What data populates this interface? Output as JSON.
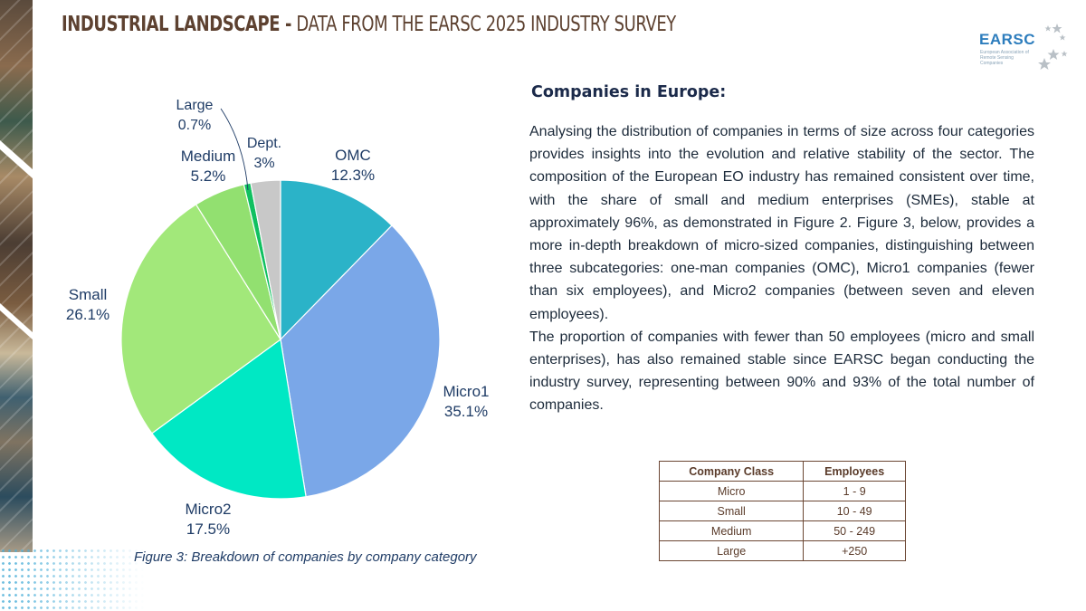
{
  "header": {
    "title_bold": "INDUSTRIAL LANDSCAPE -",
    "title_rest": " DATA FROM THE EARSC 2025 INDUSTRY SURVEY"
  },
  "logo": {
    "name": "EARSC",
    "subtitle": "European Association of Remote Sensing Companies"
  },
  "chart_data": {
    "type": "pie",
    "title": "",
    "caption": "Figure 3: Breakdown of companies by company category",
    "slices": [
      {
        "label": "OMC",
        "value": 12.3,
        "display": "12.3%",
        "color": "#2bb3c8"
      },
      {
        "label": "Micro1",
        "value": 35.1,
        "display": "35.1%",
        "color": "#7aa7e8"
      },
      {
        "label": "Micro2",
        "value": 17.5,
        "display": "17.5%",
        "color": "#00e8c4"
      },
      {
        "label": "Small",
        "value": 26.1,
        "display": "26.1%",
        "color": "#a2e87a"
      },
      {
        "label": "Medium",
        "value": 5.2,
        "display": "5.2%",
        "color": "#92e070"
      },
      {
        "label": "Large",
        "value": 0.7,
        "display": "0.7%",
        "color": "#10c060"
      },
      {
        "label": "Dept.",
        "value": 3,
        "display": "3%",
        "color": "#c8c8c8"
      }
    ]
  },
  "section": {
    "heading": "Companies in Europe:",
    "paragraph1": "Analysing the distribution of companies in terms of size across four categories provides insights into the evolution and relative stability of the sector. The composition of the European EO industry has remained consistent over time, with the share of small and medium enterprises (SMEs), stable at approximately 96%, as demonstrated in Figure 2. Figure 3, below, provides a more in-depth breakdown of micro-sized companies, distinguishing between three subcategories: one-man companies (OMC), Micro1 companies (fewer than six employees), and Micro2 companies (between seven and eleven employees).",
    "paragraph2": "The proportion of companies with fewer than 50 employees (micro and small enterprises), has also remained stable since EARSC began conducting the industry survey, representing between 90% and 93% of the total number of companies."
  },
  "table": {
    "headers": [
      "Company Class",
      "Employees"
    ],
    "rows": [
      [
        "Micro",
        "1 - 9"
      ],
      [
        "Small",
        "10 - 49"
      ],
      [
        "Medium",
        "50 - 249"
      ],
      [
        "Large",
        "+250"
      ]
    ]
  }
}
